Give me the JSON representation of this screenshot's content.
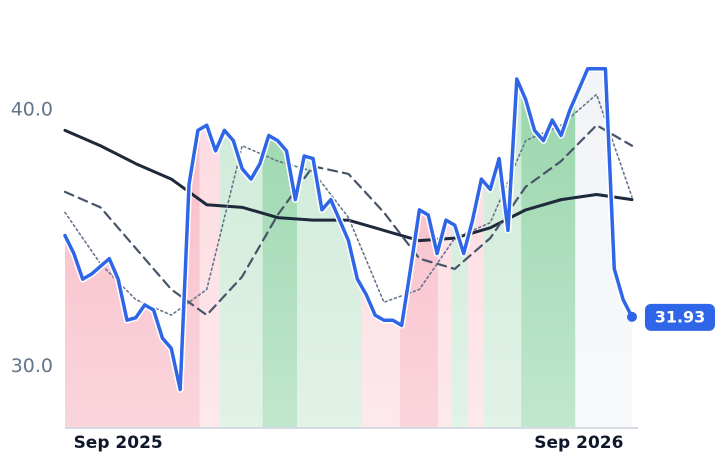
{
  "chart_data": {
    "type": "line",
    "xlim": [
      0,
      64
    ],
    "xticks": [
      {
        "value": 6,
        "label": "Sep 2025"
      },
      {
        "value": 58,
        "label": "Sep 2026"
      }
    ],
    "ylim": [
      27.6,
      43.5
    ],
    "yticks": [
      {
        "value": 30,
        "label": "30.0"
      },
      {
        "value": 40,
        "label": "40.0"
      }
    ],
    "grid": false,
    "regions": [
      {
        "start": 0,
        "end": 15.2,
        "color": "#f7b3c0"
      },
      {
        "start": 15.2,
        "end": 17.5,
        "color": "#fcd6dd"
      },
      {
        "start": 17.5,
        "end": 22.3,
        "color": "#c9e8d3"
      },
      {
        "start": 22.3,
        "end": 26.2,
        "color": "#8fd2a4"
      },
      {
        "start": 26.2,
        "end": 33.5,
        "color": "#c9e8d3"
      },
      {
        "start": 33.5,
        "end": 37.8,
        "color": "#fcd6dd"
      },
      {
        "start": 37.8,
        "end": 42.1,
        "color": "#f7b3c0"
      },
      {
        "start": 42.1,
        "end": 43.6,
        "color": "#fcd6dd"
      },
      {
        "start": 43.6,
        "end": 45.5,
        "color": "#c9e8d3"
      },
      {
        "start": 45.5,
        "end": 47.3,
        "color": "#fcd6dd"
      },
      {
        "start": 47.3,
        "end": 51.5,
        "color": "#c9e8d3"
      },
      {
        "start": 51.5,
        "end": 57.6,
        "color": "#8fd2a4"
      },
      {
        "start": 57.6,
        "end": 64,
        "color": "#f1f3f6"
      }
    ],
    "series": [
      {
        "color": "#2f66e8",
        "width": 3.5,
        "dash": "solid",
        "area": true,
        "end_marker": true,
        "x": [
          0,
          1,
          2,
          3,
          4,
          5,
          6,
          7,
          8,
          9,
          10,
          11,
          12,
          13,
          14,
          15,
          16,
          17,
          18,
          19,
          20,
          21,
          22,
          23,
          24,
          25,
          26,
          27,
          28,
          29,
          30,
          31,
          32,
          33,
          34,
          35,
          36,
          37,
          38,
          39,
          40,
          41,
          42,
          43,
          44,
          45,
          46,
          47,
          48,
          49,
          50,
          51,
          52,
          53,
          54,
          55,
          56,
          57,
          58,
          59,
          60,
          61,
          62,
          63,
          64
        ],
        "values": [
          35.1,
          34.4,
          33.4,
          33.6,
          33.9,
          34.2,
          33.4,
          31.8,
          31.9,
          32.4,
          32.2,
          31.1,
          30.7,
          29.1,
          37.1,
          39.2,
          39.4,
          38.4,
          39.2,
          38.8,
          37.7,
          37.3,
          37.9,
          39.0,
          38.8,
          38.4,
          36.5,
          38.2,
          38.1,
          36.1,
          36.5,
          35.7,
          34.9,
          33.4,
          32.8,
          32.0,
          31.8,
          31.8,
          31.6,
          33.8,
          36.1,
          35.9,
          34.4,
          35.7,
          35.5,
          34.4,
          35.7,
          37.3,
          36.9,
          38.1,
          35.3,
          41.2,
          40.4,
          39.2,
          38.8,
          39.6,
          39.0,
          40.0,
          40.8,
          41.6,
          41.6,
          41.6,
          33.8,
          32.6,
          31.93
        ]
      },
      {
        "color": "#1e293b",
        "width": 3,
        "dash": "solid",
        "x": [
          0,
          4,
          8,
          12,
          16,
          20,
          24,
          28,
          32,
          36,
          40,
          44,
          48,
          52,
          56,
          60,
          64
        ],
        "values": [
          39.2,
          38.6,
          37.9,
          37.3,
          36.3,
          36.2,
          35.8,
          35.7,
          35.7,
          35.3,
          34.9,
          35.0,
          35.4,
          36.1,
          36.5,
          36.7,
          36.5
        ]
      },
      {
        "color": "#475569",
        "width": 2.2,
        "dash": "dashed",
        "x": [
          0,
          4,
          8,
          12,
          16,
          20,
          24,
          28,
          32,
          36,
          40,
          44,
          48,
          52,
          56,
          60,
          64
        ],
        "values": [
          36.8,
          36.2,
          34.6,
          33.0,
          32.0,
          33.5,
          35.9,
          37.8,
          37.5,
          36.0,
          34.2,
          33.8,
          35.0,
          37.0,
          38.0,
          39.4,
          38.6
        ]
      },
      {
        "color": "#64748b",
        "width": 1.6,
        "dash": "dotted",
        "x": [
          0,
          4,
          8,
          12,
          16,
          20,
          24,
          28,
          32,
          36,
          40,
          44,
          48,
          52,
          56,
          60,
          64
        ],
        "values": [
          36.0,
          34.0,
          32.6,
          32.0,
          33.0,
          38.6,
          38.0,
          37.6,
          35.8,
          32.5,
          33.0,
          35.0,
          35.6,
          38.8,
          39.4,
          40.6,
          36.6
        ]
      }
    ]
  }
}
